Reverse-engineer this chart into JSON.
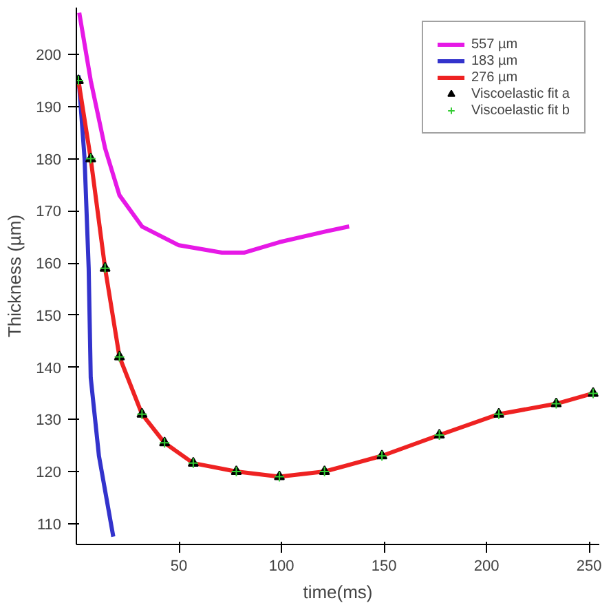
{
  "chart_data": {
    "type": "line",
    "xlabel": "time(ms)",
    "ylabel": "Thickness (µm)",
    "xlim": [
      0,
      255
    ],
    "ylim": [
      106,
      209
    ],
    "xticks": [
      50,
      100,
      150,
      200,
      250
    ],
    "yticks": [
      110,
      120,
      130,
      140,
      150,
      160,
      170,
      180,
      190,
      200
    ],
    "grid": false,
    "legend": "top right",
    "line_style": "solid",
    "series": [
      {
        "name": "557 µm",
        "color": "#e619e6",
        "x": [
          1.4,
          7,
          14,
          21,
          32,
          50,
          71,
          82,
          99,
          121,
          133
        ],
        "values": [
          208,
          195,
          182,
          173,
          167,
          163.4,
          162,
          162,
          164,
          166,
          167
        ]
      },
      {
        "name": "183 µm",
        "color": "#3333cc",
        "x": [
          1,
          4,
          6,
          7,
          11,
          18
        ],
        "values": [
          196,
          180,
          159,
          138,
          123,
          107.5
        ]
      },
      {
        "name": "276 µm",
        "color": "#ee2222",
        "x": [
          1,
          7,
          14,
          21,
          32,
          43,
          57,
          78,
          99,
          121,
          149,
          177,
          206,
          234,
          252
        ],
        "values": [
          195,
          180,
          159,
          142,
          131,
          125.5,
          121.6,
          120,
          119,
          120,
          123,
          127,
          131,
          133,
          135
        ]
      },
      {
        "name": "Viscoelastic fit a",
        "type": "scatter",
        "marker": "triangle",
        "color": "#000000",
        "x": [
          1,
          7,
          14,
          21,
          32,
          43,
          57,
          78,
          99,
          121,
          149,
          177,
          206,
          234,
          252
        ],
        "values": [
          195,
          180,
          159,
          142,
          131,
          125.5,
          121.6,
          120,
          119,
          120,
          123,
          127,
          131,
          133,
          135
        ]
      },
      {
        "name": "Viscoelastic fit b",
        "type": "scatter",
        "marker": "cross",
        "color": "#33cc33",
        "x": [
          1,
          7,
          14,
          21,
          32,
          43,
          57,
          78,
          99,
          121,
          149,
          177,
          206,
          234,
          252
        ],
        "values": [
          195,
          180,
          159,
          142,
          131,
          125.5,
          121.6,
          120,
          119,
          120,
          123,
          127,
          131,
          133,
          135
        ]
      }
    ]
  }
}
